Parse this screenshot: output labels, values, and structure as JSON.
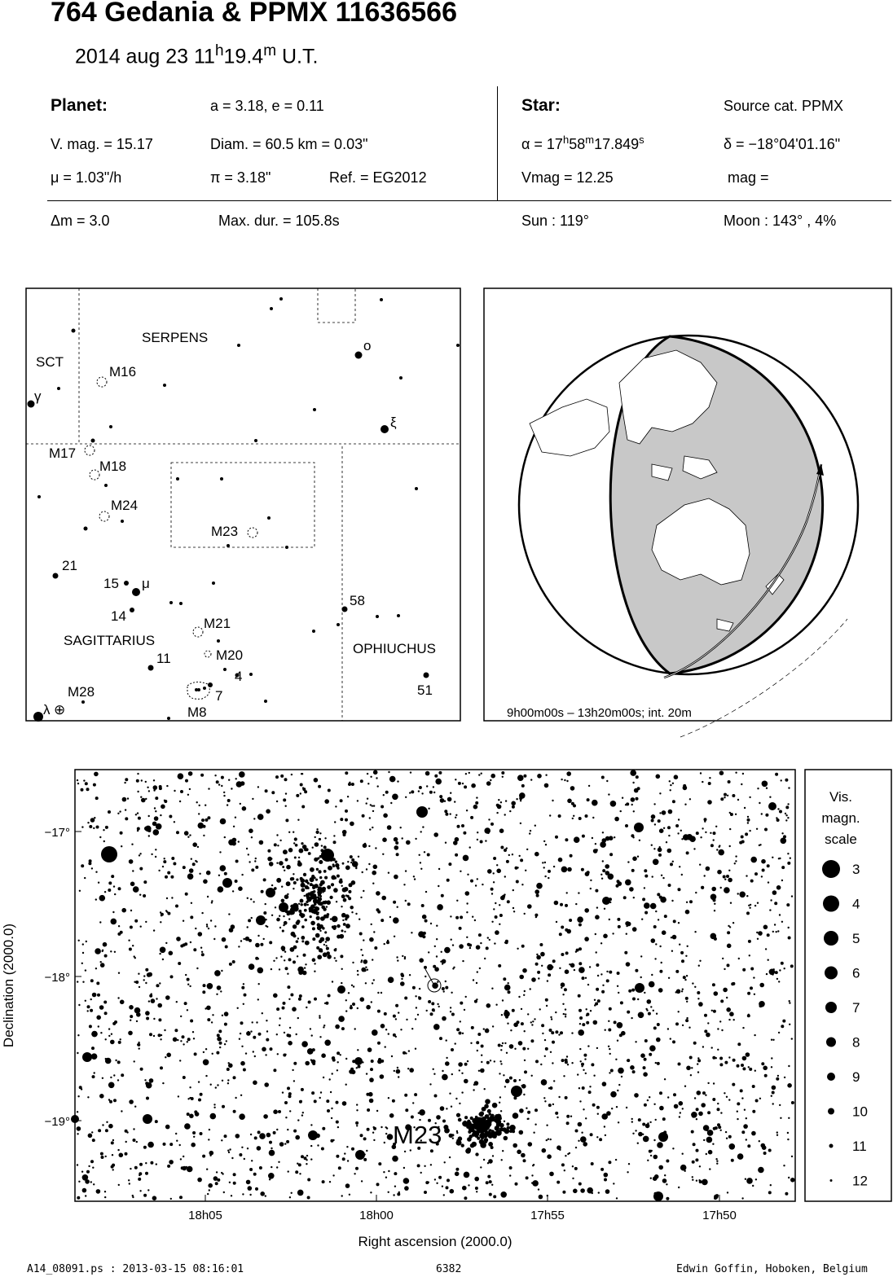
{
  "header": {
    "title": "764 Gedania  &  PPMX 11636566",
    "date_text": "2014 aug 23  11",
    "time_h": "h",
    "time_min": "19.4",
    "time_m": "m",
    "time_ut": " U.T."
  },
  "planet": {
    "heading": "Planet:",
    "orbit": "a = 3.18, e = 0.11",
    "vmag": "V. mag. = 15.17",
    "diam": "Diam. = 60.5 km = 0.03\"",
    "mu": "μ =  1.03\"/h",
    "pi": "π =  3.18\"",
    "ref": "Ref. = EG2012"
  },
  "star": {
    "heading": "Star:",
    "source": "Source cat.  PPMX",
    "ra_prefix": "α = 17",
    "ra_h": "h",
    "ra_min": "58",
    "ra_m": "m",
    "ra_sec": "17.849",
    "ra_s": "s",
    "dec": "δ = −18°04'01.16\"",
    "vmag": "Vmag = 12.25",
    "mag": "mag ="
  },
  "event": {
    "dm": "Δm = 3.0",
    "maxdur": "Max. dur. = 105.8s",
    "sun": "Sun : 119°",
    "moon": "Moon : 143° ,  4%"
  },
  "finder": {
    "constellations": [
      "SERPENS",
      "SCT",
      "SAGITTARIUS",
      "OPHIUCHUS"
    ],
    "objects": [
      "M16",
      "M17",
      "M18",
      "M24",
      "M23",
      "M21",
      "M20",
      "M28",
      "M8"
    ],
    "stars": [
      "ο",
      "ξ",
      "γ",
      "μ",
      "λ",
      "21",
      "15",
      "14",
      "11",
      "4",
      "7",
      "58",
      "51"
    ],
    "earth_symbol": "⊕"
  },
  "globe": {
    "caption": "9h00m00s – 13h20m00s; int. 20m"
  },
  "detail_chart": {
    "ylabel": "Declination (2000.0)",
    "xlabel": "Right ascension (2000.0)",
    "yticks": [
      "−17°",
      "−18°",
      "−19°"
    ],
    "xticks": [
      "18h05",
      "18h00",
      "17h55",
      "17h50"
    ],
    "cluster_label": "M23"
  },
  "scale": {
    "title1": "Vis.",
    "title2": "magn.",
    "title3": "scale",
    "mags": [
      "3",
      "4",
      "5",
      "6",
      "7",
      "8",
      "9",
      "10",
      "11",
      "12"
    ]
  },
  "footer": {
    "file": "A14_08091.ps : 2013-03-15 08:16:01",
    "number": "6382",
    "author": "Edwin Goffin, Hoboken, Belgium"
  }
}
